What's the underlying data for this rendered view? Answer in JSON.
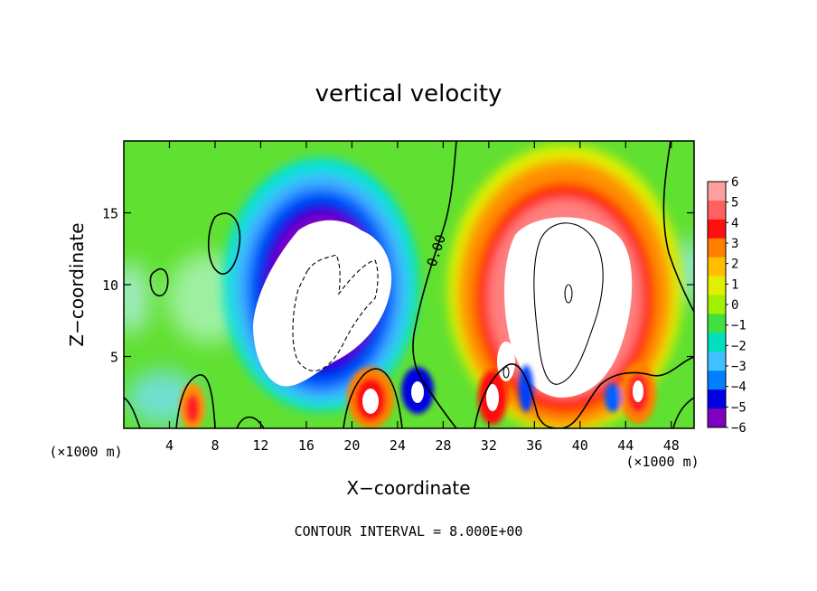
{
  "chart_data": {
    "type": "heatmap",
    "title": "vertical velocity",
    "xlabel": "X−coordinate",
    "ylabel": "Z−coordinate",
    "x_unit": "(×1000 m)",
    "xlim": [
      0,
      50
    ],
    "ylim": [
      0,
      20
    ],
    "x_ticks": [
      4,
      8,
      12,
      16,
      20,
      24,
      28,
      32,
      36,
      40,
      44,
      48
    ],
    "y_ticks": [
      5,
      10,
      15
    ],
    "x_tick_labels": [
      "4",
      "8",
      "12",
      "16",
      "20",
      "24",
      "28",
      "32",
      "36",
      "40",
      "44",
      "48"
    ],
    "y_tick_labels": [
      "5",
      "10",
      "15"
    ],
    "colorbar": {
      "levels": [
        6,
        5,
        4,
        3,
        2,
        1,
        0,
        -1,
        -2,
        -3,
        -4,
        -5,
        -6
      ],
      "labels": [
        "6",
        "5",
        "4",
        "3",
        "2",
        "1",
        "0",
        "−1",
        "−2",
        "−3",
        "−4",
        "−5",
        "−6"
      ],
      "colors": [
        "#ff9f9f",
        "#ff6060",
        "#ff1010",
        "#ff7f00",
        "#ffbf00",
        "#e0f000",
        "#a0f000",
        "#40e040",
        "#00e0c0",
        "#40c0ff",
        "#0080ff",
        "#0000e0",
        "#8000c0"
      ]
    },
    "contour_label": "0.00",
    "footer": "CONTOUR INTERVAL = 8.000E+00"
  }
}
